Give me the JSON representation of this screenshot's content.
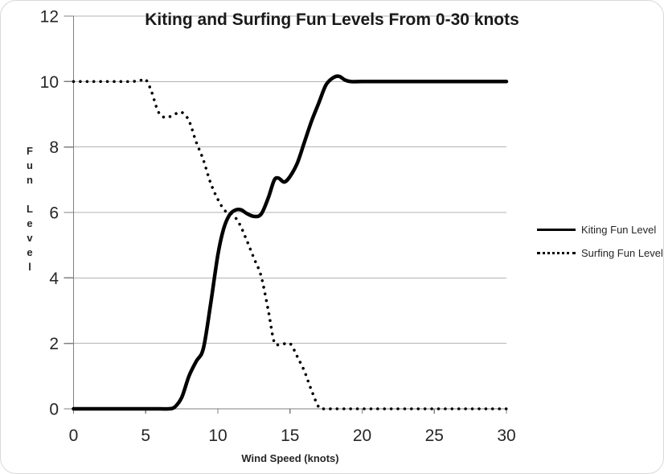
{
  "chart_data": {
    "type": "line",
    "title": "Kiting and Surfing Fun Levels From 0-30 knots",
    "xlabel": "Wind Speed (knots)",
    "ylabel": "Fun Level",
    "xlim": [
      0,
      30
    ],
    "ylim": [
      0,
      12
    ],
    "xticks": [
      0,
      5,
      10,
      15,
      20,
      25,
      30
    ],
    "yticks": [
      0,
      2,
      4,
      6,
      8,
      10,
      12
    ],
    "grid": "horizontal",
    "legend_position": "right",
    "colors": {
      "series": "#000000",
      "gridline": "#b3b3b3",
      "axis": "#808080",
      "tick_label": "#262626",
      "title": "#1a1a1a"
    },
    "series": [
      {
        "name": "Kiting Fun Level",
        "style": "solid",
        "color": "#000000",
        "points": [
          [
            0,
            0
          ],
          [
            1,
            0
          ],
          [
            2,
            0
          ],
          [
            3,
            0
          ],
          [
            4,
            0
          ],
          [
            5,
            0
          ],
          [
            6,
            0
          ],
          [
            6.6,
            0
          ],
          [
            7,
            0.05
          ],
          [
            7.5,
            0.35
          ],
          [
            8,
            1.0
          ],
          [
            8.5,
            1.45
          ],
          [
            9,
            1.85
          ],
          [
            9.5,
            3.2
          ],
          [
            10,
            4.7
          ],
          [
            10.4,
            5.5
          ],
          [
            10.8,
            5.92
          ],
          [
            11.2,
            6.07
          ],
          [
            11.6,
            6.08
          ],
          [
            12,
            5.97
          ],
          [
            12.5,
            5.88
          ],
          [
            13,
            5.95
          ],
          [
            13.5,
            6.45
          ],
          [
            13.9,
            6.98
          ],
          [
            14.2,
            7.05
          ],
          [
            14.6,
            6.93
          ],
          [
            15,
            7.1
          ],
          [
            15.5,
            7.5
          ],
          [
            16,
            8.15
          ],
          [
            16.5,
            8.8
          ],
          [
            17,
            9.35
          ],
          [
            17.5,
            9.9
          ],
          [
            18,
            10.12
          ],
          [
            18.4,
            10.16
          ],
          [
            18.8,
            10.05
          ],
          [
            19.2,
            10
          ],
          [
            20,
            10
          ],
          [
            21,
            10
          ],
          [
            22,
            10
          ],
          [
            23,
            10
          ],
          [
            24,
            10
          ],
          [
            25,
            10
          ],
          [
            26,
            10
          ],
          [
            27,
            10
          ],
          [
            28,
            10
          ],
          [
            29,
            10
          ],
          [
            30,
            10
          ]
        ]
      },
      {
        "name": "Surfing Fun Level",
        "style": "dotted",
        "color": "#000000",
        "points": [
          [
            0,
            10
          ],
          [
            1,
            10
          ],
          [
            2,
            10
          ],
          [
            3,
            10
          ],
          [
            4,
            10
          ],
          [
            4.6,
            10.03
          ],
          [
            5,
            10.06
          ],
          [
            5.4,
            9.7
          ],
          [
            5.8,
            9.15
          ],
          [
            6.1,
            8.95
          ],
          [
            6.5,
            8.9
          ],
          [
            7,
            9.0
          ],
          [
            7.5,
            9.06
          ],
          [
            8,
            8.8
          ],
          [
            8.5,
            8.15
          ],
          [
            9,
            7.6
          ],
          [
            9.5,
            6.9
          ],
          [
            10,
            6.4
          ],
          [
            10.5,
            6.05
          ],
          [
            11,
            5.95
          ],
          [
            11.5,
            5.65
          ],
          [
            12,
            5.15
          ],
          [
            12.5,
            4.6
          ],
          [
            13,
            4.05
          ],
          [
            13.5,
            3.0
          ],
          [
            13.9,
            2.05
          ],
          [
            14.3,
            1.97
          ],
          [
            14.8,
            2.0
          ],
          [
            15.1,
            1.95
          ],
          [
            15.5,
            1.6
          ],
          [
            16,
            1.15
          ],
          [
            16.5,
            0.55
          ],
          [
            17,
            0.05
          ],
          [
            17.4,
            0
          ],
          [
            18,
            0
          ],
          [
            19,
            0
          ],
          [
            20,
            0
          ],
          [
            21,
            0
          ],
          [
            22,
            0
          ],
          [
            23,
            0
          ],
          [
            24,
            0
          ],
          [
            25,
            0
          ],
          [
            26,
            0
          ],
          [
            27,
            0
          ],
          [
            28,
            0
          ],
          [
            29,
            0
          ],
          [
            30,
            0
          ]
        ]
      }
    ]
  }
}
